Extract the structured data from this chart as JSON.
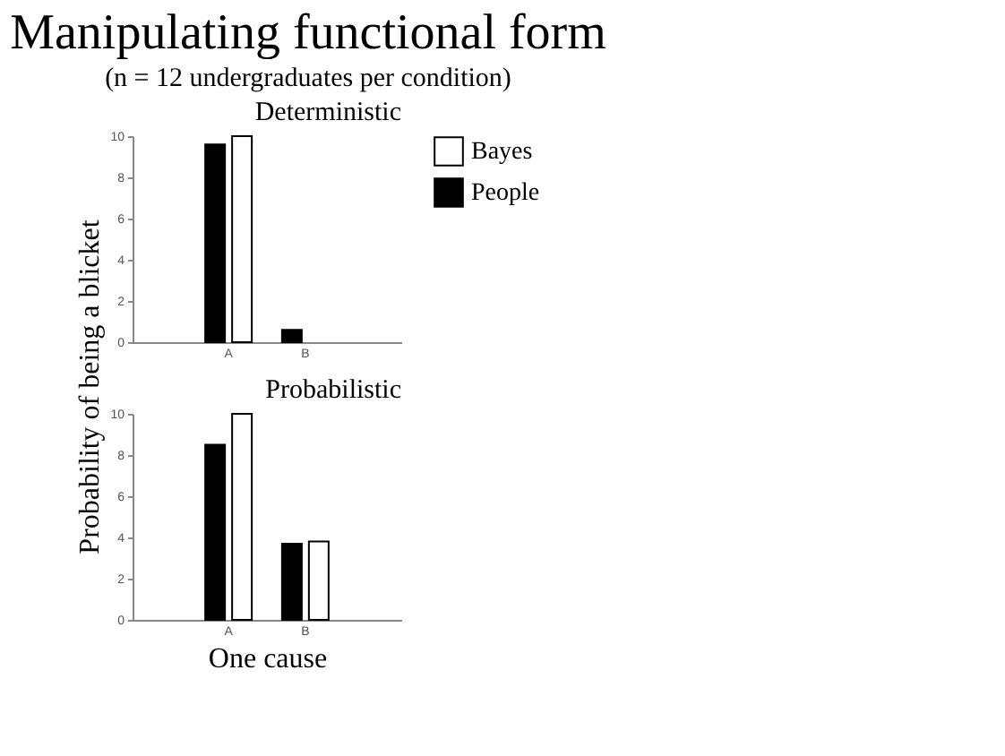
{
  "chart_data": [
    {
      "type": "bar",
      "title": "Manipulating functional form",
      "subtitle": "(n = 12 undergraduates per condition)",
      "ylabel": "Probability of being a blicket",
      "annotations": [
        "Deterministic"
      ],
      "categories": [
        "A",
        "B"
      ],
      "series": [
        {
          "name": "Bayes",
          "color": "#ffffff",
          "values": [
            10,
            null
          ]
        },
        {
          "name": "People",
          "color": "#000000",
          "values": [
            9.6,
            0.6
          ]
        }
      ],
      "ylim": [
        0,
        10
      ],
      "yticks": [
        0,
        2,
        4,
        6,
        8,
        10
      ],
      "legend": "top right",
      "grid": false
    },
    {
      "type": "bar",
      "annotations": [
        "Probabilistic"
      ],
      "xlabel": "One cause",
      "categories": [
        "A",
        "B"
      ],
      "series": [
        {
          "name": "Bayes",
          "color": "#ffffff",
          "values": [
            10,
            3.8
          ]
        },
        {
          "name": "People",
          "color": "#000000",
          "values": [
            8.5,
            3.7
          ]
        }
      ],
      "ylim": [
        0,
        10
      ],
      "yticks": [
        0,
        2,
        4,
        6,
        8,
        10
      ],
      "legend": false,
      "grid": false
    }
  ]
}
